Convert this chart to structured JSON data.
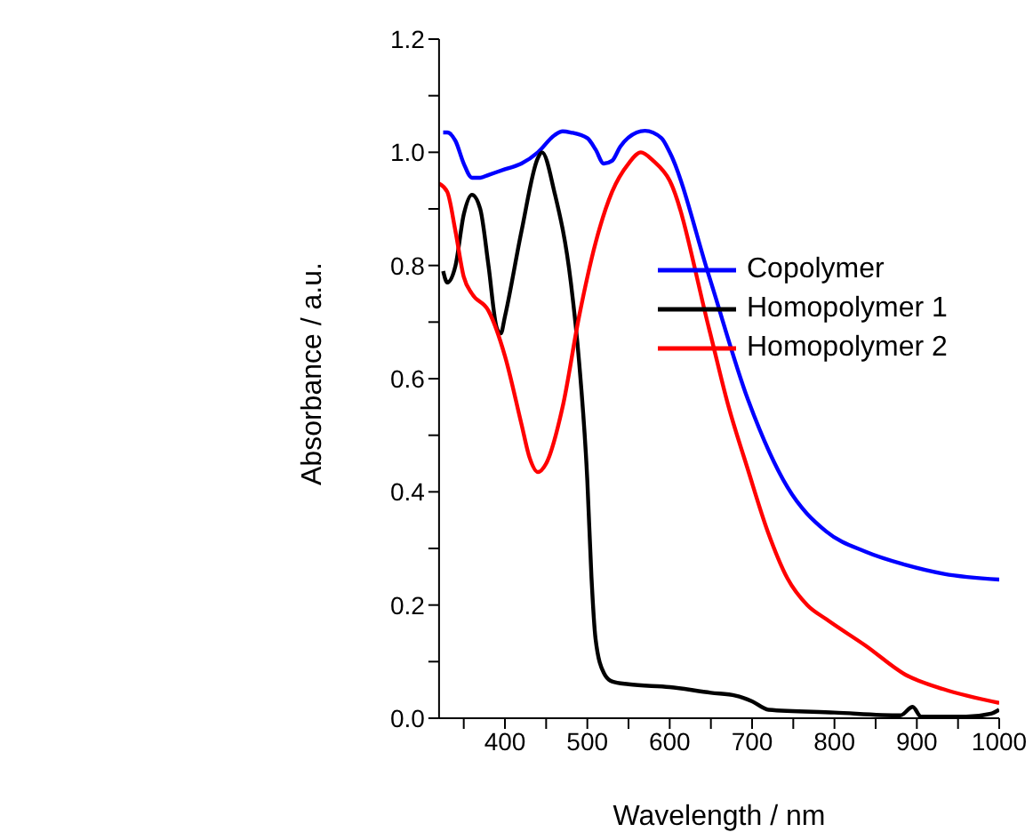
{
  "chart_data": {
    "type": "line",
    "xlabel": "Wavelength / nm",
    "ylabel": "Absorbance / a.u.",
    "xlim": [
      320,
      1000
    ],
    "ylim": [
      0,
      1.2
    ],
    "xticks": [
      {
        "value": 350,
        "label": null
      },
      400,
      {
        "value": 450,
        "label": null
      },
      500,
      {
        "value": 550,
        "label": null
      },
      600,
      {
        "value": 650,
        "label": null
      },
      700,
      {
        "value": 750,
        "label": null
      },
      800,
      {
        "value": 850,
        "label": null
      },
      900,
      {
        "value": 950,
        "label": null
      },
      1000
    ],
    "yticks": [
      {
        "value": 0,
        "label": "0.0"
      },
      {
        "value": 0.1,
        "label": null
      },
      0.2,
      {
        "value": 0.3,
        "label": null
      },
      0.4,
      {
        "value": 0.5,
        "label": null
      },
      0.6,
      {
        "value": 0.7,
        "label": null
      },
      0.8,
      {
        "value": 0.9,
        "label": null
      },
      {
        "value": 1,
        "label": "1.0"
      },
      {
        "value": 1.1,
        "label": null
      },
      1.2
    ],
    "legend": "right",
    "grid": false,
    "marker": "none",
    "line_style": "solid",
    "series": [
      {
        "name": "Copolymer",
        "color": "#0000ff",
        "x": [
          325,
          330,
          340,
          350,
          360,
          370,
          380,
          400,
          420,
          440,
          460,
          470,
          480,
          500,
          510,
          520,
          530,
          540,
          560,
          570,
          590,
          600,
          648,
          695,
          743,
          790,
          838,
          886,
          933,
          1000
        ],
        "values": [
          1.035,
          1.035,
          1.02,
          0.98,
          0.955,
          0.955,
          0.96,
          0.97,
          0.98,
          1.0,
          1.03,
          1.037,
          1.035,
          1.025,
          1.005,
          0.98,
          0.985,
          1.01,
          1.035,
          1.038,
          1.025,
          1.0,
          0.78,
          0.563,
          0.408,
          0.33,
          0.294,
          0.271,
          0.255,
          0.245
        ]
      },
      {
        "name": "Homopolymer 1",
        "color": "#000000",
        "x": [
          325,
          330,
          340,
          350,
          360,
          370,
          380,
          390,
          395,
          400,
          420,
          440,
          445,
          460,
          480,
          490,
          500,
          505,
          510,
          520,
          530,
          550,
          600,
          650,
          680,
          700,
          720,
          800,
          880,
          895,
          905,
          960,
          990,
          1000
        ],
        "values": [
          0.79,
          0.77,
          0.8,
          0.89,
          0.925,
          0.9,
          0.8,
          0.69,
          0.68,
          0.71,
          0.86,
          0.99,
          1.0,
          0.93,
          0.77,
          0.63,
          0.42,
          0.25,
          0.14,
          0.08,
          0.065,
          0.06,
          0.055,
          0.045,
          0.04,
          0.03,
          0.015,
          0.01,
          0.005,
          0.02,
          0.003,
          0.003,
          0.008,
          0.015
        ]
      },
      {
        "name": "Homopolymer 2",
        "color": "#ff0000",
        "x": [
          320,
          330,
          340,
          350,
          360,
          380,
          400,
          420,
          430,
          440,
          450,
          470,
          490,
          510,
          530,
          550,
          565,
          580,
          600,
          648,
          671,
          695,
          719,
          743,
          767,
          790,
          838,
          886,
          933,
          1000
        ],
        "values": [
          0.945,
          0.93,
          0.86,
          0.78,
          0.75,
          0.72,
          0.64,
          0.52,
          0.46,
          0.435,
          0.45,
          0.55,
          0.71,
          0.84,
          0.93,
          0.98,
          1.0,
          0.985,
          0.95,
          0.687,
          0.553,
          0.439,
          0.33,
          0.247,
          0.2,
          0.175,
          0.128,
          0.077,
          0.051,
          0.027
        ]
      }
    ]
  }
}
